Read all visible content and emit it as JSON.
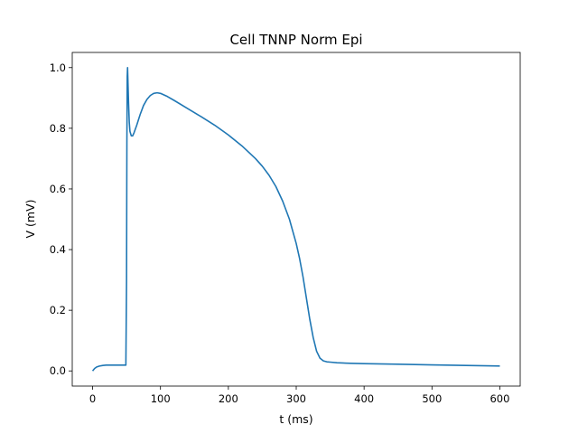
{
  "chart_data": {
    "type": "line",
    "title": "Cell TNNP Norm Epi",
    "xlabel": "t (ms)",
    "ylabel": "V (mV)",
    "xlim": [
      -30,
      630
    ],
    "ylim": [
      -0.05,
      1.05
    ],
    "xticks": [
      0,
      100,
      200,
      300,
      400,
      500,
      600
    ],
    "yticks": [
      0.0,
      0.2,
      0.4,
      0.6,
      0.8,
      1.0
    ],
    "xtick_labels": [
      "0",
      "100",
      "200",
      "300",
      "400",
      "500",
      "600"
    ],
    "ytick_labels": [
      "0.0",
      "0.2",
      "0.4",
      "0.6",
      "0.8",
      "1.0"
    ],
    "grid": false,
    "series": [
      {
        "color": "#1f77b4",
        "x": [
          0,
          3,
          6,
          10,
          15,
          20,
          30,
          40,
          49,
          50,
          50.5,
          51,
          51.5,
          52,
          53,
          54,
          55,
          57,
          59,
          61,
          65,
          70,
          75,
          80,
          85,
          90,
          95,
          100,
          110,
          120,
          140,
          160,
          180,
          200,
          220,
          240,
          250,
          260,
          270,
          280,
          290,
          300,
          305,
          310,
          315,
          320,
          325,
          330,
          335,
          340,
          345,
          350,
          360,
          380,
          400,
          450,
          500,
          550,
          600
        ],
        "y": [
          0.0,
          0.008,
          0.013,
          0.016,
          0.018,
          0.019,
          0.019,
          0.019,
          0.019,
          0.3,
          0.75,
          0.97,
          1.0,
          0.96,
          0.88,
          0.82,
          0.79,
          0.775,
          0.775,
          0.785,
          0.81,
          0.845,
          0.875,
          0.895,
          0.908,
          0.915,
          0.917,
          0.915,
          0.905,
          0.892,
          0.865,
          0.838,
          0.81,
          0.778,
          0.742,
          0.7,
          0.675,
          0.645,
          0.608,
          0.56,
          0.5,
          0.42,
          0.37,
          0.31,
          0.24,
          0.17,
          0.11,
          0.065,
          0.042,
          0.033,
          0.03,
          0.029,
          0.027,
          0.025,
          0.024,
          0.022,
          0.02,
          0.018,
          0.016
        ]
      }
    ]
  }
}
